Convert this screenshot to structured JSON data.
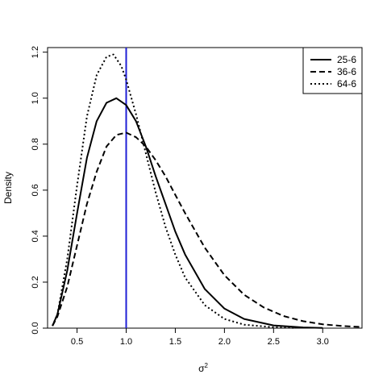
{
  "chart_data": {
    "type": "line",
    "title": "",
    "xlabel": "σ",
    "xlabel_superscript": "2",
    "ylabel": "Density",
    "xlim": [
      0.2,
      3.4
    ],
    "ylim": [
      0,
      1.22
    ],
    "xticks": [
      0.5,
      1.0,
      1.5,
      2.0,
      2.5,
      3.0
    ],
    "xtick_labels": [
      "0.5",
      "1.0",
      "1.5",
      "2.0",
      "2.5",
      "3.0"
    ],
    "yticks": [
      0,
      0.2,
      0.4,
      0.6,
      0.8,
      1.0,
      1.2
    ],
    "ytick_labels": [
      "0.0",
      "0.2",
      "0.4",
      "0.6",
      "0.8",
      "1.0",
      "1.2"
    ],
    "grid": false,
    "legend_position": "top-right",
    "reference_line": {
      "x": 1.0,
      "color": "#1f1fd6"
    },
    "series": [
      {
        "name": "25-6",
        "style": "solid",
        "color": "#000000",
        "points": [
          [
            0.25,
            0.01
          ],
          [
            0.3,
            0.06
          ],
          [
            0.4,
            0.25
          ],
          [
            0.5,
            0.5
          ],
          [
            0.6,
            0.74
          ],
          [
            0.7,
            0.9
          ],
          [
            0.8,
            0.98
          ],
          [
            0.9,
            1.0
          ],
          [
            1.0,
            0.97
          ],
          [
            1.1,
            0.9
          ],
          [
            1.2,
            0.79
          ],
          [
            1.3,
            0.66
          ],
          [
            1.4,
            0.54
          ],
          [
            1.5,
            0.42
          ],
          [
            1.6,
            0.32
          ],
          [
            1.8,
            0.17
          ],
          [
            2.0,
            0.085
          ],
          [
            2.2,
            0.04
          ],
          [
            2.5,
            0.012
          ],
          [
            2.8,
            0.003
          ],
          [
            3.0,
            0.001
          ]
        ]
      },
      {
        "name": "36-6",
        "style": "dashed",
        "color": "#000000",
        "points": [
          [
            0.25,
            0.01
          ],
          [
            0.3,
            0.05
          ],
          [
            0.4,
            0.18
          ],
          [
            0.5,
            0.36
          ],
          [
            0.6,
            0.54
          ],
          [
            0.7,
            0.68
          ],
          [
            0.8,
            0.79
          ],
          [
            0.9,
            0.84
          ],
          [
            1.0,
            0.85
          ],
          [
            1.1,
            0.83
          ],
          [
            1.2,
            0.79
          ],
          [
            1.3,
            0.73
          ],
          [
            1.4,
            0.66
          ],
          [
            1.5,
            0.58
          ],
          [
            1.6,
            0.5
          ],
          [
            1.8,
            0.35
          ],
          [
            2.0,
            0.23
          ],
          [
            2.2,
            0.145
          ],
          [
            2.4,
            0.09
          ],
          [
            2.6,
            0.053
          ],
          [
            2.8,
            0.03
          ],
          [
            3.0,
            0.017
          ],
          [
            3.2,
            0.009
          ],
          [
            3.4,
            0.005
          ]
        ]
      },
      {
        "name": "64-6",
        "style": "dotted",
        "color": "#000000",
        "points": [
          [
            0.25,
            0.01
          ],
          [
            0.3,
            0.06
          ],
          [
            0.4,
            0.3
          ],
          [
            0.5,
            0.62
          ],
          [
            0.6,
            0.92
          ],
          [
            0.7,
            1.1
          ],
          [
            0.8,
            1.18
          ],
          [
            0.87,
            1.19
          ],
          [
            0.95,
            1.14
          ],
          [
            1.0,
            1.08
          ],
          [
            1.1,
            0.93
          ],
          [
            1.2,
            0.76
          ],
          [
            1.3,
            0.59
          ],
          [
            1.4,
            0.44
          ],
          [
            1.5,
            0.32
          ],
          [
            1.6,
            0.22
          ],
          [
            1.8,
            0.1
          ],
          [
            2.0,
            0.04
          ],
          [
            2.2,
            0.015
          ],
          [
            2.5,
            0.004
          ],
          [
            2.7,
            0.001
          ]
        ]
      }
    ]
  }
}
